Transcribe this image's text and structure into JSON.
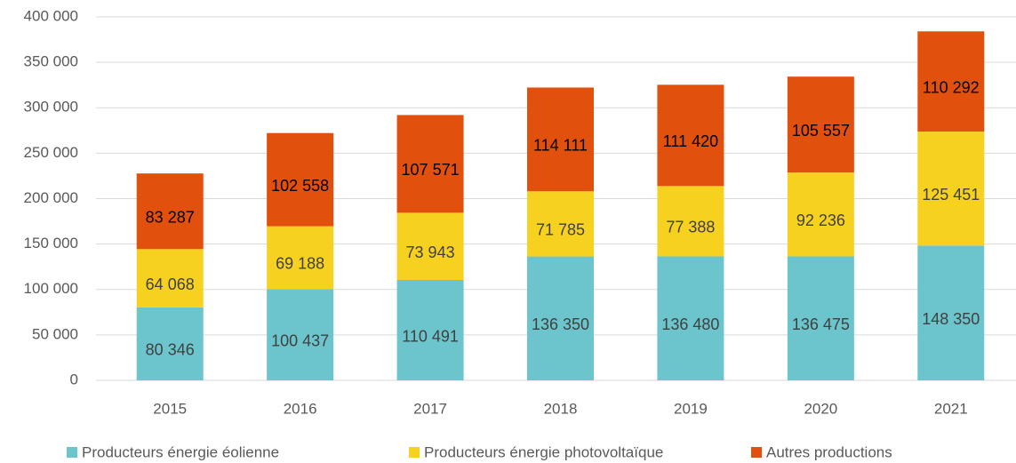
{
  "chart_data": {
    "type": "stacked_bar",
    "categories": [
      "2015",
      "2016",
      "2017",
      "2018",
      "2019",
      "2020",
      "2021"
    ],
    "series": [
      {
        "name": "Producteurs énergie éolienne",
        "color": "#6cc5cc",
        "values": [
          80346,
          100437,
          110491,
          136350,
          136480,
          136475,
          148350
        ],
        "value_labels": [
          "80 346",
          "100 437",
          "110 491",
          "136 350",
          "136 480",
          "136 475",
          "148 350"
        ]
      },
      {
        "name": "Producteurs énergie photovoltaïque",
        "color": "#f7d11f",
        "values": [
          64068,
          69188,
          73943,
          71785,
          77388,
          92236,
          125451
        ],
        "value_labels": [
          "64 068",
          "69 188",
          "73 943",
          "71 785",
          "77 388",
          "92 236",
          "125 451"
        ]
      },
      {
        "name": "Autres productions",
        "color": "#e2500e",
        "values": [
          83287,
          102558,
          107571,
          114111,
          111420,
          105557,
          110292
        ],
        "value_labels": [
          "83 287",
          "102 558",
          "107 571",
          "114 111",
          "111 420",
          "105 557",
          "110 292"
        ]
      }
    ],
    "ylim": [
      0,
      400000
    ],
    "yticks": [
      0,
      {
        "value": 50000,
        "label": "50 000"
      },
      {
        "value": 100000,
        "label": "100 000"
      },
      {
        "value": 150000,
        "label": "150 000"
      },
      {
        "value": 200000,
        "label": "200 000"
      },
      {
        "value": 250000,
        "label": "250 000"
      },
      {
        "value": 300000,
        "label": "300 000"
      },
      {
        "value": 350000,
        "label": "350 000"
      },
      {
        "value": 400000,
        "label": "400 000"
      }
    ],
    "grid": true,
    "legend": "bottom"
  }
}
